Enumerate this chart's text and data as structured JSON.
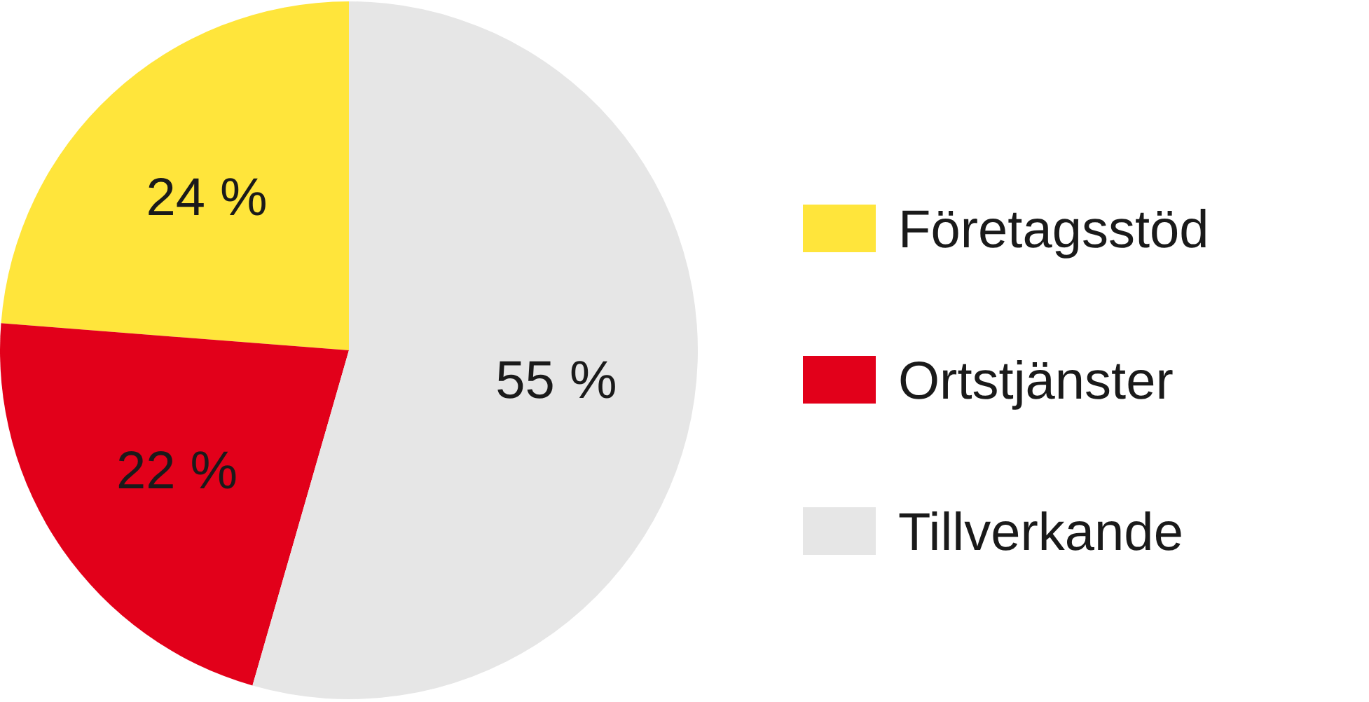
{
  "chart_data": {
    "type": "pie",
    "categories": [
      "Företagsstöd",
      "Ortstjänster",
      "Tillverkande"
    ],
    "values": [
      24,
      22,
      55
    ],
    "colors": [
      "#ffe53b",
      "#e2001a",
      "#e6e6e6"
    ],
    "value_labels": [
      "24 %",
      "22 %",
      "55 %"
    ],
    "legend": "right"
  }
}
